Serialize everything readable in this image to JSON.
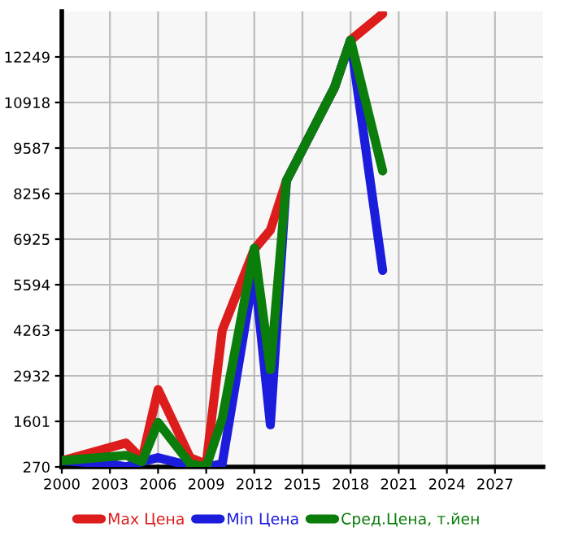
{
  "chart_data": {
    "type": "line",
    "series": [
      {
        "name": "Max Цена",
        "color": "#dd1c1c",
        "x": [
          2000,
          2004,
          2005,
          2006,
          2008,
          2009,
          2010,
          2012,
          2013,
          2014,
          2017,
          2018,
          2020
        ],
        "values": [
          450,
          970,
          490,
          2530,
          540,
          350,
          4260,
          6630,
          7190,
          8630,
          11360,
          12740,
          13510
        ]
      },
      {
        "name": "Min Цена",
        "color": "#1c1cdd",
        "x": [
          2000,
          2003,
          2004,
          2005,
          2006,
          2008,
          2009,
          2010,
          2012,
          2013,
          2014,
          2017,
          2018,
          2020
        ],
        "values": [
          450,
          360,
          270,
          420,
          540,
          300,
          270,
          360,
          6040,
          1500,
          8630,
          11360,
          12740,
          6010
        ]
      },
      {
        "name": "Сред.Цена, т.йен",
        "color": "#0a7d0a",
        "x": [
          2000,
          2004,
          2005,
          2006,
          2008,
          2009,
          2010,
          2012,
          2013,
          2014,
          2017,
          2018,
          2020
        ],
        "values": [
          450,
          610,
          420,
          1570,
          360,
          270,
          1680,
          6660,
          3110,
          8630,
          11360,
          12740,
          8920
        ]
      }
    ],
    "xlim": [
      2000,
      2030
    ],
    "xticks": [
      2000,
      2003,
      2006,
      2009,
      2012,
      2015,
      2018,
      2021,
      2024,
      2027
    ],
    "ylim": [
      270,
      13580
    ],
    "yticks": [
      270,
      1601,
      2932,
      4263,
      5594,
      6925,
      8256,
      9587,
      10918,
      12249
    ],
    "grid": true,
    "legend": "bottom",
    "marker": "none",
    "line_style": "solid"
  }
}
